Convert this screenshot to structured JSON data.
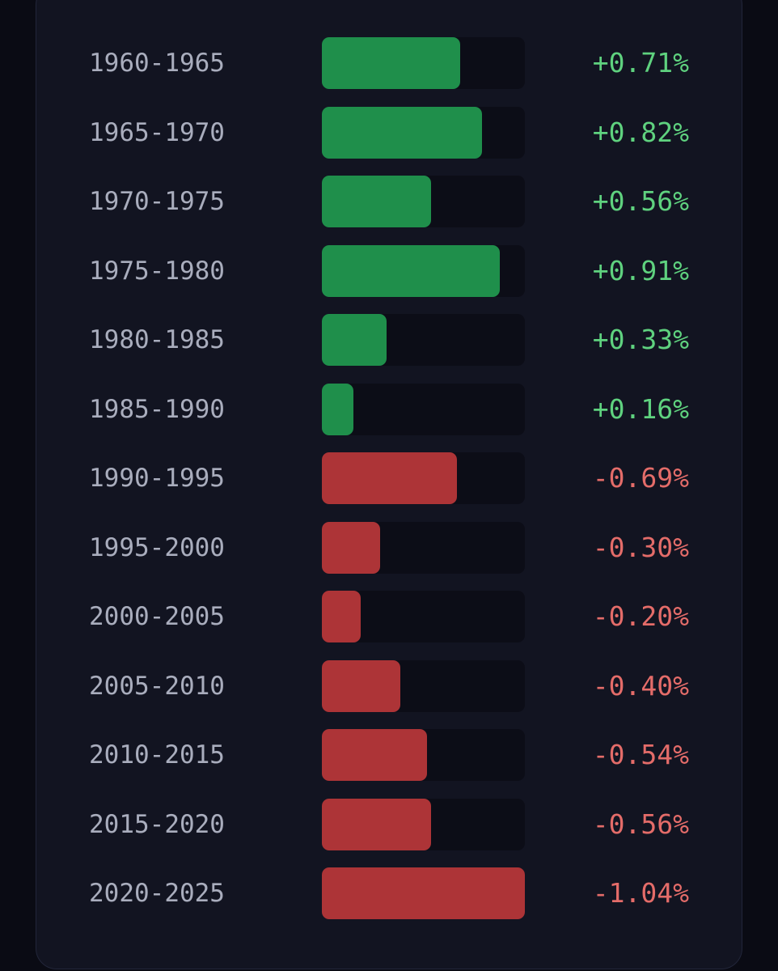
{
  "chart_data": {
    "type": "bar",
    "orientation": "horizontal",
    "categories": [
      "1960-1965",
      "1965-1970",
      "1970-1975",
      "1975-1980",
      "1980-1985",
      "1985-1990",
      "1990-1995",
      "1995-2000",
      "2000-2005",
      "2005-2010",
      "2010-2015",
      "2015-2020",
      "2020-2025"
    ],
    "values": [
      0.71,
      0.82,
      0.56,
      0.91,
      0.33,
      0.16,
      -0.69,
      -0.3,
      -0.2,
      -0.4,
      -0.54,
      -0.56,
      -1.04
    ],
    "value_labels": [
      "+0.71%",
      "+0.82%",
      "+0.56%",
      "+0.91%",
      "+0.33%",
      "+0.16%",
      "-0.69%",
      "-0.30%",
      "-0.20%",
      "-0.40%",
      "-0.54%",
      "-0.56%",
      "-1.04%"
    ],
    "xlim": [
      0,
      1.04
    ],
    "colors": {
      "positive_bar": "#1f8f4b",
      "negative_bar": "#ad3437",
      "positive_text": "#5fd27f",
      "negative_text": "#e46c69",
      "track": "#0c0d17",
      "label_text": "#a9adbd"
    }
  }
}
